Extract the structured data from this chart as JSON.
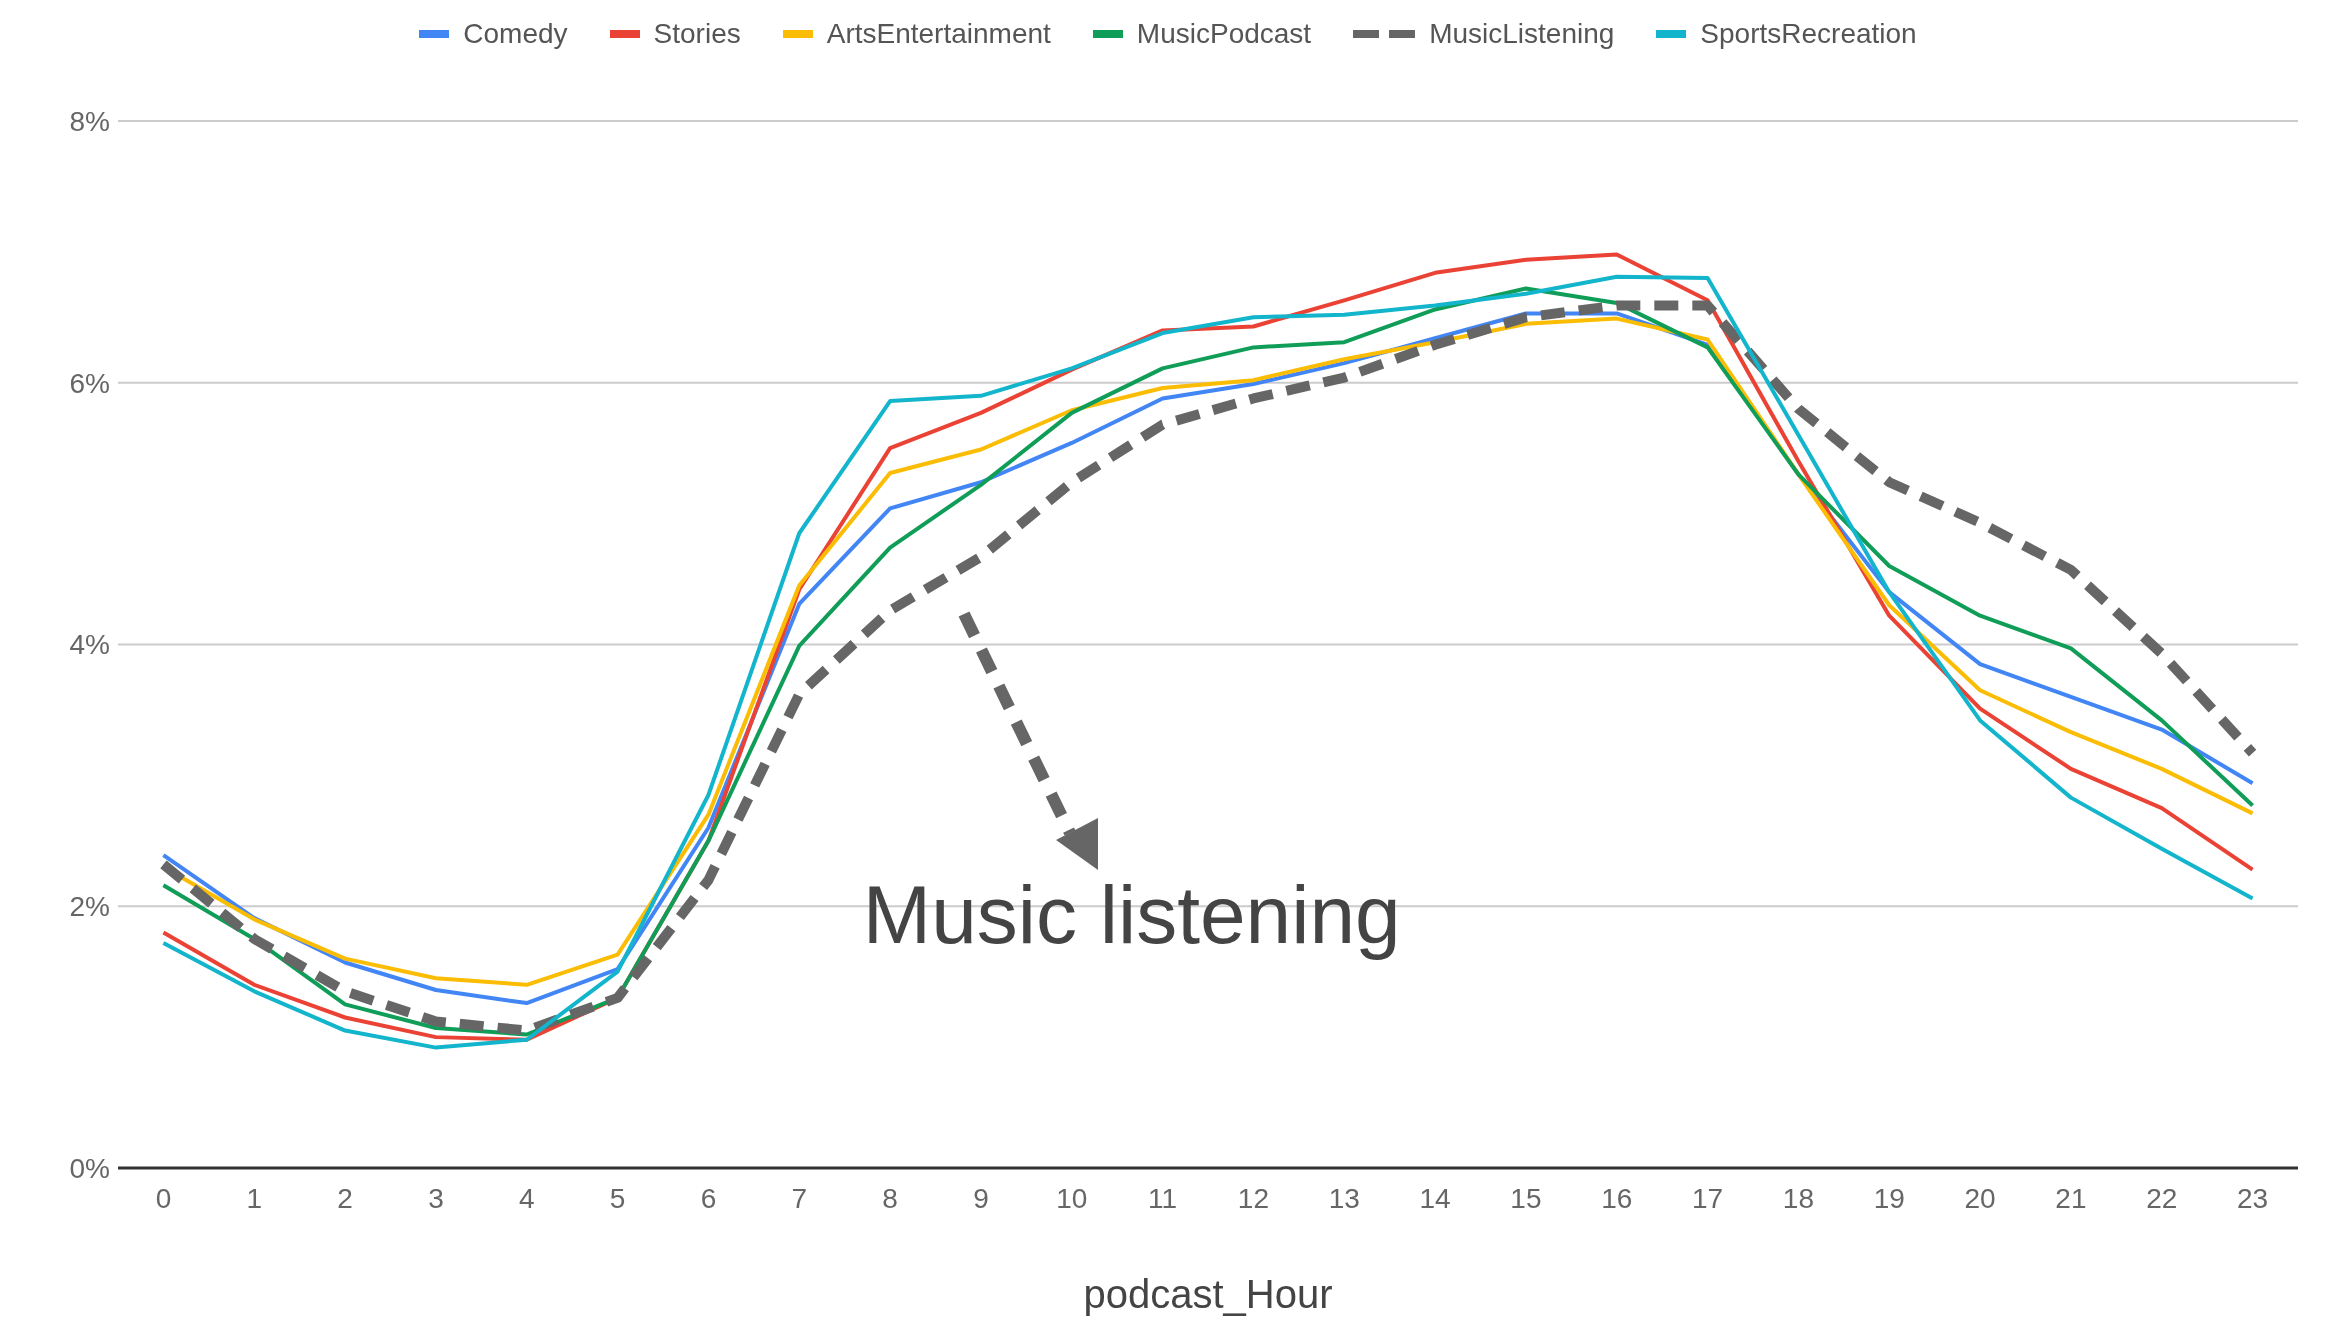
{
  "chart_data": {
    "type": "line",
    "xlabel": "podcast_Hour",
    "x": [
      0,
      1,
      2,
      3,
      4,
      5,
      6,
      7,
      8,
      9,
      10,
      11,
      12,
      13,
      14,
      15,
      16,
      17,
      18,
      19,
      20,
      21,
      22,
      23
    ],
    "xlim": [
      -0.5,
      23.5
    ],
    "xticks": [
      0,
      1,
      2,
      3,
      4,
      5,
      6,
      7,
      8,
      9,
      10,
      11,
      12,
      13,
      14,
      15,
      16,
      17,
      18,
      19,
      20,
      21,
      22,
      23
    ],
    "series": [
      {
        "name": "Comedy",
        "color": "#4285f4",
        "values": [
          2.39,
          1.91,
          1.57,
          1.36,
          1.26,
          1.52,
          2.6,
          4.31,
          5.04,
          5.24,
          5.54,
          5.88,
          5.99,
          6.15,
          6.34,
          6.53,
          6.53,
          6.29,
          5.3,
          4.4,
          3.85,
          3.6,
          3.35,
          2.94
        ]
      },
      {
        "name": "Stories",
        "color": "#ea4335",
        "values": [
          1.8,
          1.4,
          1.15,
          1.0,
          0.98,
          1.3,
          2.5,
          4.42,
          5.5,
          5.77,
          6.1,
          6.4,
          6.43,
          6.63,
          6.84,
          6.94,
          6.98,
          6.63,
          5.4,
          4.22,
          3.51,
          3.05,
          2.75,
          2.28
        ]
      },
      {
        "name": "ArtsEntertainment",
        "color": "#fbbc04",
        "values": [
          2.3,
          1.9,
          1.6,
          1.45,
          1.4,
          1.63,
          2.7,
          4.45,
          5.31,
          5.49,
          5.79,
          5.96,
          6.02,
          6.18,
          6.31,
          6.45,
          6.49,
          6.33,
          5.3,
          4.3,
          3.65,
          3.33,
          3.05,
          2.71
        ]
      },
      {
        "name": "MusicPodcast",
        "color": "#0f9d58",
        "values": [
          2.16,
          1.75,
          1.25,
          1.07,
          1.02,
          1.3,
          2.5,
          3.99,
          4.74,
          5.22,
          5.77,
          6.11,
          6.27,
          6.31,
          6.56,
          6.72,
          6.61,
          6.27,
          5.3,
          4.6,
          4.22,
          3.97,
          3.42,
          2.77
        ]
      },
      {
        "name": "MusicListening",
        "color": "#666666",
        "line_style": "dashed",
        "values": [
          2.32,
          1.75,
          1.35,
          1.12,
          1.05,
          1.3,
          2.2,
          3.62,
          4.26,
          4.67,
          5.24,
          5.68,
          5.88,
          6.04,
          6.29,
          6.5,
          6.59,
          6.59,
          5.8,
          5.24,
          4.93,
          4.57,
          3.93,
          3.17
        ]
      },
      {
        "name": "SportsRecreation",
        "color": "#12b5cb",
        "values": [
          1.72,
          1.35,
          1.05,
          0.92,
          0.98,
          1.5,
          2.85,
          4.85,
          5.86,
          5.9,
          6.11,
          6.38,
          6.5,
          6.52,
          6.59,
          6.68,
          6.81,
          6.8,
          5.6,
          4.4,
          3.42,
          2.83,
          2.44,
          2.06
        ]
      }
    ],
    "ylim": [
      0,
      8
    ],
    "yticks": [
      {
        "value": 0,
        "label": "0%"
      },
      {
        "value": 2,
        "label": "2%"
      },
      {
        "value": 4,
        "label": "4%"
      },
      {
        "value": 6,
        "label": "6%"
      },
      {
        "value": 8,
        "label": "8%"
      }
    ],
    "grid": "y",
    "legend": "top",
    "marker": "none",
    "annotations": [
      "Music listening"
    ]
  }
}
